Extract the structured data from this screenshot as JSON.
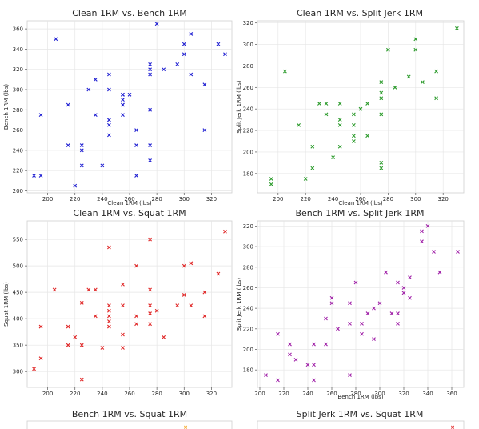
{
  "chart_data": [
    {
      "type": "scatter",
      "title": "Clean 1RM vs. Bench 1RM",
      "xlabel": "Clean 1RM (lbs)",
      "ylabel": "Bench 1RM (lbs)",
      "xlim": [
        185,
        335
      ],
      "ylim": [
        198,
        368
      ],
      "xticks": [
        200,
        220,
        240,
        260,
        280,
        300,
        320
      ],
      "yticks": [
        200,
        220,
        240,
        260,
        280,
        300,
        320,
        340,
        360
      ],
      "color": "#1f1fd2",
      "grid": true,
      "x": [
        190,
        195,
        195,
        206,
        215,
        215,
        220,
        225,
        225,
        225,
        230,
        235,
        235,
        240,
        245,
        245,
        245,
        245,
        245,
        255,
        255,
        255,
        255,
        255,
        255,
        260,
        265,
        265,
        265,
        275,
        275,
        275,
        275,
        275,
        275,
        280,
        285,
        295,
        300,
        300,
        305,
        305,
        315,
        315,
        325,
        330
      ],
      "y": [
        215,
        215,
        275,
        350,
        245,
        285,
        205,
        245,
        240,
        225,
        300,
        275,
        310,
        225,
        255,
        265,
        270,
        300,
        315,
        275,
        285,
        290,
        295,
        285,
        295,
        295,
        215,
        245,
        260,
        230,
        245,
        280,
        315,
        320,
        325,
        365,
        320,
        325,
        335,
        345,
        315,
        355,
        260,
        305,
        345,
        335
      ]
    },
    {
      "type": "scatter",
      "title": "Clean 1RM vs. Split Jerk 1RM",
      "xlabel": "Clean 1RM (lbs)",
      "ylabel": "Split Jerk 1RM (lbs)",
      "xlim": [
        185,
        335
      ],
      "ylim": [
        162,
        322
      ],
      "xticks": [
        200,
        220,
        240,
        260,
        280,
        300,
        320
      ],
      "yticks": [
        180,
        200,
        220,
        240,
        260,
        280,
        300,
        320
      ],
      "color": "#2a9a2a",
      "grid": true,
      "x": [
        195,
        195,
        205,
        215,
        220,
        225,
        225,
        230,
        235,
        235,
        240,
        245,
        245,
        245,
        245,
        255,
        255,
        255,
        255,
        260,
        265,
        265,
        275,
        275,
        275,
        275,
        275,
        275,
        280,
        285,
        295,
        300,
        300,
        305,
        315,
        315,
        330
      ],
      "y": [
        170,
        175,
        275,
        225,
        175,
        185,
        205,
        245,
        235,
        245,
        195,
        205,
        225,
        230,
        245,
        210,
        215,
        225,
        235,
        240,
        215,
        245,
        185,
        190,
        235,
        250,
        255,
        265,
        295,
        260,
        270,
        295,
        305,
        265,
        250,
        275,
        315
      ]
    },
    {
      "type": "scatter",
      "title": "Clean 1RM vs. Squat 1RM",
      "xlabel": "",
      "ylabel": "Squat 1RM (lbs)",
      "xlim": [
        185,
        335
      ],
      "ylim": [
        270,
        585
      ],
      "xticks": [
        200,
        220,
        240,
        260,
        280,
        300,
        320
      ],
      "yticks": [
        300,
        350,
        400,
        450,
        500,
        550
      ],
      "color": "#e02525",
      "grid": true,
      "x": [
        190,
        195,
        195,
        205,
        215,
        215,
        220,
        225,
        225,
        225,
        230,
        235,
        235,
        240,
        245,
        245,
        245,
        245,
        245,
        245,
        255,
        255,
        255,
        255,
        265,
        265,
        265,
        275,
        275,
        275,
        275,
        275,
        280,
        285,
        295,
        300,
        300,
        305,
        305,
        315,
        315,
        325,
        330
      ],
      "y": [
        305,
        325,
        385,
        455,
        350,
        385,
        365,
        285,
        350,
        430,
        455,
        405,
        455,
        345,
        385,
        405,
        415,
        425,
        535,
        395,
        345,
        370,
        425,
        465,
        390,
        405,
        500,
        390,
        410,
        425,
        455,
        550,
        415,
        365,
        425,
        445,
        500,
        425,
        505,
        405,
        450,
        485,
        565
      ]
    },
    {
      "type": "scatter",
      "title": "Bench 1RM vs. Split Jerk 1RM",
      "xlabel": "Bench 1RM (lbs)",
      "ylabel": "Split Jerk 1RM (lbs)",
      "xlim": [
        198,
        370
      ],
      "ylim": [
        163,
        325
      ],
      "xticks": [
        200,
        220,
        240,
        260,
        280,
        300,
        320,
        340,
        360
      ],
      "yticks": [
        180,
        200,
        220,
        240,
        260,
        280,
        300,
        320
      ],
      "color": "#a020a8",
      "grid": true,
      "x": [
        205,
        215,
        215,
        225,
        225,
        230,
        240,
        245,
        245,
        245,
        255,
        255,
        260,
        260,
        265,
        275,
        275,
        275,
        280,
        285,
        285,
        290,
        295,
        295,
        300,
        305,
        310,
        315,
        315,
        315,
        320,
        320,
        325,
        325,
        335,
        335,
        340,
        345,
        350,
        365
      ],
      "y": [
        175,
        170,
        215,
        195,
        205,
        190,
        185,
        170,
        185,
        205,
        205,
        230,
        245,
        250,
        220,
        175,
        225,
        245,
        265,
        215,
        225,
        235,
        210,
        240,
        245,
        275,
        235,
        225,
        235,
        265,
        255,
        260,
        250,
        270,
        305,
        315,
        320,
        295,
        275,
        295
      ]
    },
    {
      "type": "scatter",
      "title": "Bench 1RM vs. Squat 1RM",
      "xlabel": "",
      "ylabel": "",
      "color": "#f5a623",
      "grid": true,
      "x": [],
      "y": []
    },
    {
      "type": "scatter",
      "title": "Split Jerk 1RM vs. Squat 1RM",
      "xlabel": "",
      "ylabel": "",
      "color": "#e02525",
      "grid": true,
      "x": [],
      "y": []
    }
  ],
  "visible_marks": {
    "bench_squat_partial": "×",
    "splitjerk_squat_partial": "×"
  }
}
